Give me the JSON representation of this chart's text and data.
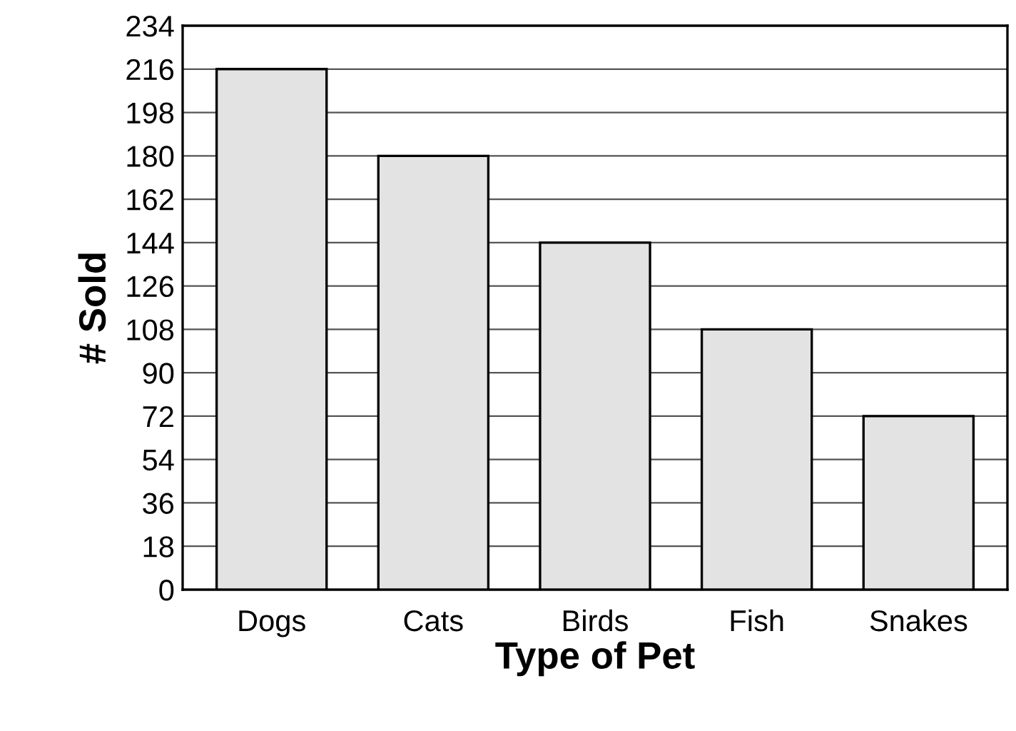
{
  "chart_data": {
    "type": "bar",
    "xlabel": "Type of Pet",
    "ylabel": "# Sold",
    "categories": [
      "Dogs",
      "Cats",
      "Birds",
      "Fish",
      "Snakes"
    ],
    "values": [
      216,
      180,
      144,
      108,
      72
    ],
    "color": "#e3e3e3",
    "ylim": [
      0,
      234
    ],
    "yticks": [
      0,
      18,
      36,
      54,
      72,
      90,
      108,
      126,
      144,
      162,
      180,
      198,
      216,
      234
    ],
    "grid": "y",
    "legend": false
  }
}
